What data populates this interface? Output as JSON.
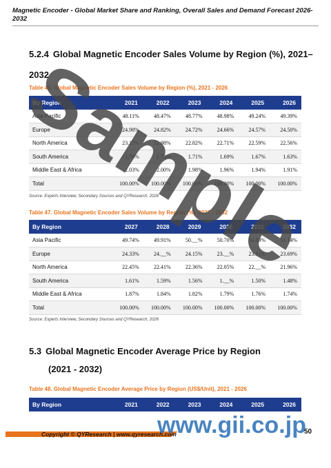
{
  "header": {
    "title": "Magnetic Encoder - Global Market Share and Ranking, Overall Sales and Demand Forecast 2026-2032"
  },
  "section_524": {
    "number": "5.2.4",
    "title_line1": "Global Magnetic Encoder Sales Volume by Region (%), 2021–",
    "title_line2": "2032"
  },
  "table46": {
    "caption": "Table 46.   Global Magnetic Encoder Sales Volume by Region (%), 2021 - 2026",
    "columns": [
      "By Region",
      "2021",
      "2022",
      "2023",
      "2024",
      "2025",
      "2026"
    ],
    "rows": [
      {
        "region": "Asia Pacific",
        "values": [
          "48.11%",
          "48.47%",
          "48.77%",
          "48.98%",
          "49.24%",
          "49.39%"
        ]
      },
      {
        "region": "Europe",
        "values": [
          "24.98%",
          "24.82%",
          "24.72%",
          "24.66%",
          "24.57%",
          "24.50%"
        ]
      },
      {
        "region": "North America",
        "values": [
          "23.12%",
          "22.98%",
          "22.82%",
          "22.71%",
          "22.59%",
          "22.56%"
        ]
      },
      {
        "region": "South America",
        "values": [
          "1.76%",
          "1.73%",
          "1.71%",
          "1.69%",
          "1.67%",
          "1.63%"
        ]
      },
      {
        "region": "Middle East & Africa",
        "values": [
          "2.03%",
          "2.00%",
          "1.98%",
          "1.96%",
          "1.94%",
          "1.91%"
        ]
      },
      {
        "region": "Total",
        "values": [
          "100.00%",
          "100.00%",
          "100.00%",
          "100.00%",
          "100.00%",
          "100.00%"
        ]
      }
    ],
    "source": "Source: Experts Interview, Secondary Sources and QYResearch, 2026"
  },
  "table47": {
    "caption": "Table 47.   Global Magnetic Encoder Sales Volume by Region (%), 2027 - 2032",
    "columns": [
      "By Region",
      "2027",
      "2028",
      "2029",
      "2030",
      "2031",
      "2032"
    ],
    "rows": [
      {
        "region": "Asia Pacific",
        "values": [
          "49.74%",
          "49.91%",
          "50.__%",
          "50.70%",
          "50.89%",
          "51.14%"
        ]
      },
      {
        "region": "Europe",
        "values": [
          "24.33%",
          "24.__%",
          "24.15%",
          "23.__%",
          "23.81%",
          "23.69%"
        ]
      },
      {
        "region": "North America",
        "values": [
          "22.45%",
          "22.41%",
          "22.36%",
          "22.05%",
          "22.__%",
          "21.96%"
        ]
      },
      {
        "region": "South America",
        "values": [
          "1.61%",
          "1.59%",
          "1.56%",
          "1.__%",
          "1.50%",
          "1.48%"
        ]
      },
      {
        "region": "Middle East & Africa",
        "values": [
          "1.87%",
          "1.84%",
          "1.82%",
          "1.79%",
          "1.76%",
          "1.74%"
        ]
      },
      {
        "region": "Total",
        "values": [
          "100.00%",
          "100.00%",
          "100.00%",
          "100.00%",
          "100.00%",
          "100.00%"
        ]
      }
    ],
    "source": "Source: Experts Interview, Secondary Sources and QYResearch, 2026"
  },
  "section_53": {
    "number": "5.3",
    "title_line1": "Global Magnetic Encoder Average Price by Region",
    "title_line2": "(2021 - 2032)"
  },
  "table48": {
    "caption": "Table 48.   Global Magnetic Encoder Average Price by Region (US$/Unit), 2021 - 2026",
    "columns": [
      "By Region",
      "2021",
      "2022",
      "2023",
      "2024",
      "2025",
      "2026"
    ]
  },
  "footer": {
    "copyright": "Copyright © QYResearch | www.qyresearch.com",
    "page_number": "50"
  },
  "watermark": {
    "text": "Sample",
    "site": "www.gii.co.jp"
  }
}
